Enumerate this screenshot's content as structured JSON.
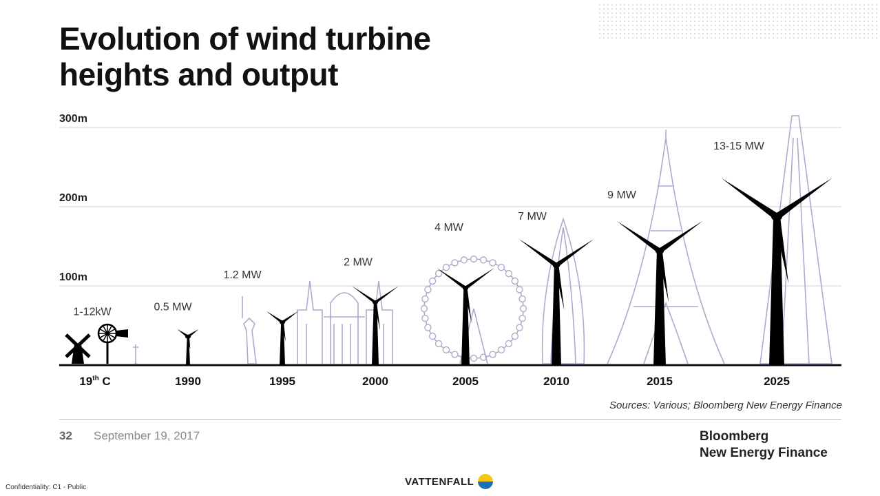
{
  "title_line1": "Evolution of wind turbine",
  "title_line2": "heights and output",
  "chart_data": {
    "type": "bar",
    "ylabel_ticks": [
      "100m",
      "200m",
      "300m"
    ],
    "categories": [
      "19th C",
      "1990",
      "1995",
      "2000",
      "2005",
      "2010",
      "2015",
      "2025"
    ],
    "category_base": [
      "19",
      "1990",
      "1995",
      "2000",
      "2005",
      "2010",
      "2015",
      "2025"
    ],
    "category_sup": [
      "th",
      "",
      "",
      "",
      "",
      "",
      "",
      ""
    ],
    "output_labels": [
      "1-12kW",
      "0.5 MW",
      "1.2 MW",
      "2 MW",
      "4 MW",
      "7 MW",
      "9 MW",
      "13-15 MW"
    ],
    "heights_m": [
      25,
      50,
      75,
      110,
      135,
      175,
      200,
      260
    ],
    "ylim": [
      0,
      310
    ],
    "series_color": "#000000",
    "landmark_color": "#b4a6cc"
  },
  "sources": "Sources: Various; Bloomberg New Energy Finance",
  "footer": {
    "page_number": "32",
    "date": "September 19, 2017",
    "brand_line1": "Bloomberg",
    "brand_line2": "New Energy Finance"
  },
  "confidentiality": "Confidentiality: C1 - Public",
  "vattenfall": "VATTENFALL",
  "icons": {
    "vattenfall_logo": "vattenfall-logo-icon"
  }
}
